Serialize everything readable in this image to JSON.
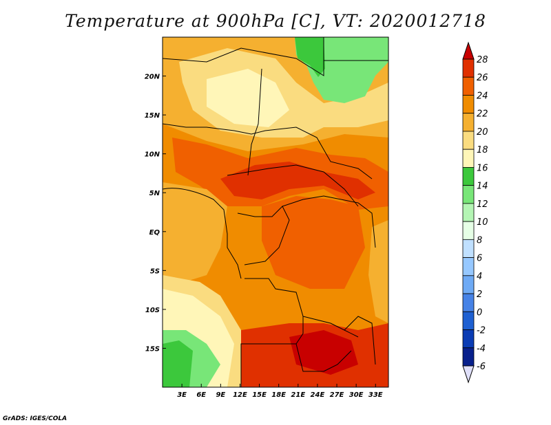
{
  "title": "Temperature at 900hPa [C], VT: 2020012718",
  "credit": "GrADS: IGES/COLA",
  "map": {
    "lon_range": [
      0,
      35
    ],
    "lat_range": [
      -20,
      25
    ],
    "lon_ticks": [
      "3E",
      "6E",
      "9E",
      "12E",
      "15E",
      "18E",
      "21E",
      "24E",
      "27E",
      "30E",
      "33E"
    ],
    "lon_tick_values": [
      3,
      6,
      9,
      12,
      15,
      18,
      21,
      24,
      27,
      30,
      33
    ],
    "lat_ticks": [
      "20N",
      "15N",
      "10N",
      "5N",
      "EQ",
      "5S",
      "10S",
      "15S"
    ],
    "lat_tick_values": [
      20,
      15,
      10,
      5,
      0,
      -5,
      -10,
      -15
    ]
  },
  "colorbar": {
    "labels": [
      "28",
      "26",
      "24",
      "22",
      "20",
      "18",
      "16",
      "14",
      "12",
      "10",
      "8",
      "6",
      "4",
      "2",
      "0",
      "-2",
      "-4",
      "-6"
    ],
    "colors": [
      "#c80000",
      "#e03000",
      "#f06000",
      "#f08c00",
      "#f5b030",
      "#fadc80",
      "#fff6b8",
      "#3cc83c",
      "#78e678",
      "#b4f5b4",
      "#e6ffe6",
      "#c0e0ff",
      "#96c8ff",
      "#6eaaf5",
      "#4682e6",
      "#1e60d2",
      "#0a3cb4",
      "#08208c",
      "#000060",
      "#e0e0fa"
    ]
  },
  "colors": {
    "green_dark": "#3cc83c",
    "green": "#78e678",
    "pale_yellow": "#fff6b8",
    "light_orange": "#fadc80",
    "orange": "#f5b030",
    "orange2": "#f08c00",
    "red_orange": "#f06000",
    "red": "#e03000",
    "dark_red": "#c80000"
  }
}
